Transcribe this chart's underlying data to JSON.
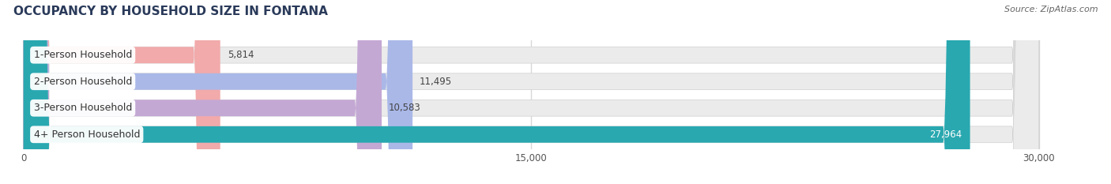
{
  "title": "OCCUPANCY BY HOUSEHOLD SIZE IN FONTANA",
  "source": "Source: ZipAtlas.com",
  "categories": [
    "1-Person Household",
    "2-Person Household",
    "3-Person Household",
    "4+ Person Household"
  ],
  "values": [
    5814,
    11495,
    10583,
    27964
  ],
  "bar_colors": [
    "#f2aaaa",
    "#aab8e8",
    "#c4a8d4",
    "#29a8b0"
  ],
  "bar_bg_color": "#ebebeb",
  "xlim": [
    0,
    30000
  ],
  "xticks": [
    0,
    15000,
    30000
  ],
  "xtick_labels": [
    "0",
    "15,000",
    "30,000"
  ],
  "title_fontsize": 11,
  "source_fontsize": 8,
  "value_label_fontsize": 8.5,
  "category_fontsize": 9,
  "background_color": "#ffffff",
  "grid_color": "#d8d8d8",
  "value_label_color_default": "#444444",
  "value_label_color_white": "#ffffff",
  "white_label_bar_index": 3
}
